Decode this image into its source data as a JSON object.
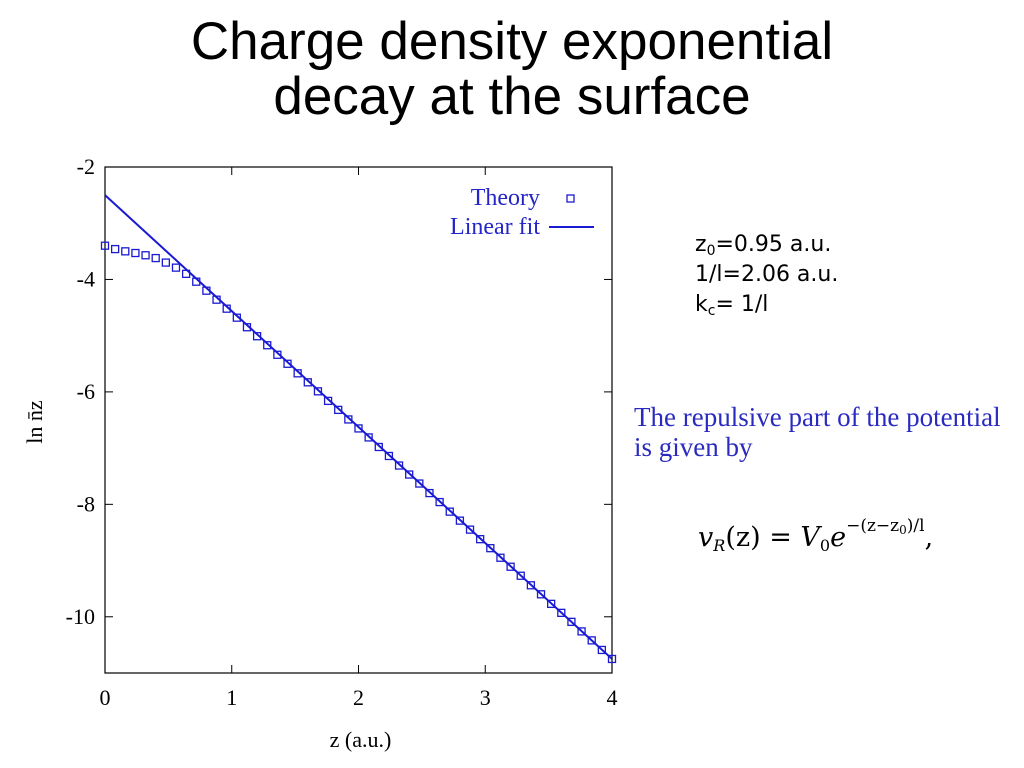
{
  "slide": {
    "title_line1": "Charge density exponential",
    "title_line2": "decay at the surface"
  },
  "params": {
    "z0_symbol": "z",
    "z0_sub": "0",
    "z0_value": "=0.95 a.u.",
    "inv_l": "1/l=2.06 a.u.",
    "kc_symbol": "k",
    "kc_sub": "c",
    "kc_value": "= 1/l"
  },
  "note": {
    "text": "The repulsive part of the potential is given by"
  },
  "formula": {
    "lhs_v": "v",
    "lhs_sub": "R",
    "lhs_arg": "(z) = ",
    "rhs_V": "V",
    "rhs_V_sub": "0",
    "rhs_e": "e",
    "exp_pre": "−(z−z",
    "exp_sub": "0",
    "exp_post": ")/l",
    "trail": ","
  },
  "colors": {
    "series": "#1a1ad2",
    "axis": "#000000"
  },
  "chart_data": {
    "type": "scatter",
    "title": "",
    "xlabel": "z (a.u.)",
    "ylabel": "ln n̄z",
    "xlim": [
      0,
      4
    ],
    "ylim": [
      -11,
      -2
    ],
    "xticks": [
      0,
      1,
      2,
      3,
      4
    ],
    "xtick_labels": [
      "0",
      "1",
      "2",
      "3",
      "4"
    ],
    "yticks": [
      -2,
      -4,
      -6,
      -8,
      -10
    ],
    "ytick_labels": [
      "-2",
      "-4",
      "-6",
      "-8",
      "-10"
    ],
    "grid": false,
    "legend_position": "top-right",
    "series": [
      {
        "name": "Theory",
        "kind": "markers",
        "marker": "open-square",
        "x": [
          0.0,
          0.08,
          0.16,
          0.24,
          0.32,
          0.4,
          0.48,
          0.56,
          0.64,
          0.72,
          0.8,
          0.88,
          0.96,
          1.04,
          1.12,
          1.2,
          1.28,
          1.36,
          1.44,
          1.52,
          1.6,
          1.68,
          1.76,
          1.84,
          1.92,
          2.0,
          2.08,
          2.16,
          2.24,
          2.32,
          2.4,
          2.48,
          2.56,
          2.64,
          2.72,
          2.8,
          2.88,
          2.96,
          3.04,
          3.12,
          3.2,
          3.28,
          3.36,
          3.44,
          3.52,
          3.6,
          3.68,
          3.76,
          3.84,
          3.92,
          4.0
        ],
        "y": [
          -3.4,
          -3.46,
          -3.5,
          -3.53,
          -3.57,
          -3.62,
          -3.7,
          -3.79,
          -3.9,
          -4.04,
          -4.2,
          -4.36,
          -4.52,
          -4.68,
          -4.85,
          -5.01,
          -5.17,
          -5.34,
          -5.5,
          -5.67,
          -5.83,
          -5.99,
          -6.16,
          -6.32,
          -6.49,
          -6.65,
          -6.81,
          -6.98,
          -7.14,
          -7.31,
          -7.47,
          -7.63,
          -7.8,
          -7.96,
          -8.13,
          -8.29,
          -8.45,
          -8.62,
          -8.78,
          -8.95,
          -9.11,
          -9.27,
          -9.44,
          -9.6,
          -9.77,
          -9.93,
          -10.09,
          -10.26,
          -10.42,
          -10.59,
          -10.75
        ]
      },
      {
        "name": "Linear fit",
        "kind": "line",
        "x": [
          0.0,
          4.0
        ],
        "y": [
          -2.5,
          -10.75
        ]
      }
    ]
  }
}
